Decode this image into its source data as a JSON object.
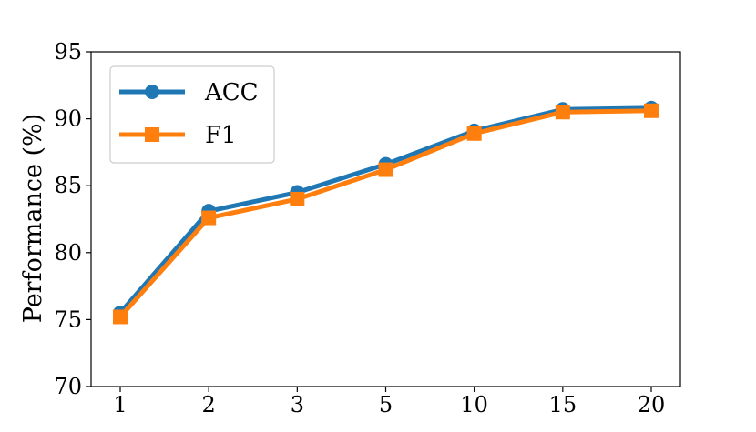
{
  "chart_data": {
    "type": "line",
    "title": "",
    "xlabel": "",
    "ylabel": "Performance (%)",
    "categories": [
      "1",
      "2",
      "3",
      "5",
      "10",
      "15",
      "20"
    ],
    "ylim": [
      70,
      95
    ],
    "yticks": [
      70,
      75,
      80,
      85,
      90,
      95
    ],
    "grid": false,
    "legend_position": "top-left",
    "series": [
      {
        "name": "ACC",
        "values": [
          75.5,
          83.1,
          84.5,
          86.6,
          89.1,
          90.7,
          90.8
        ],
        "color": "#1f77b4",
        "marker": "circle"
      },
      {
        "name": "F1",
        "values": [
          75.2,
          82.6,
          84.0,
          86.2,
          88.9,
          90.5,
          90.6
        ],
        "color": "#ff7f0e",
        "marker": "square"
      }
    ]
  }
}
